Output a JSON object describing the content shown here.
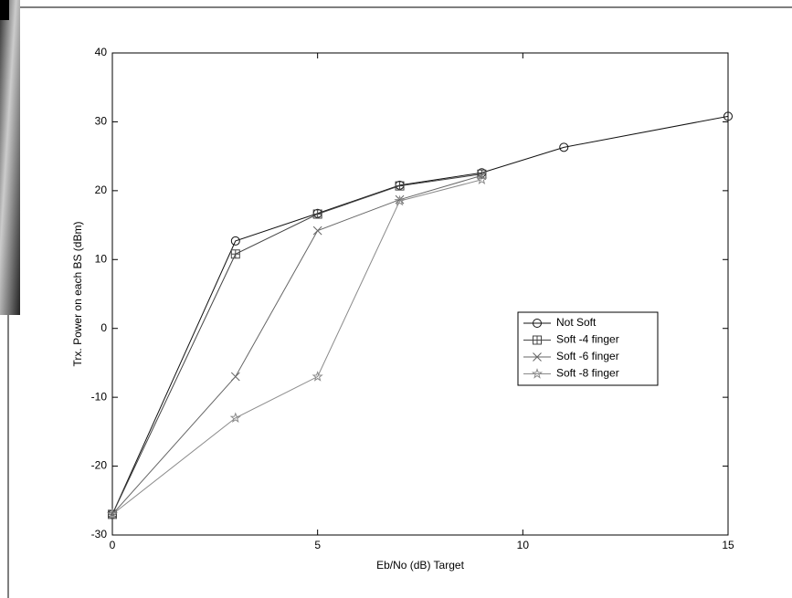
{
  "chart_data": {
    "type": "line",
    "xlabel": "Eb/No (dB) Target",
    "ylabel": "Trx. Power on each BS (dBm)",
    "xlim": [
      0,
      15
    ],
    "xticks": [
      0,
      5,
      10,
      15
    ],
    "ylim": [
      -30,
      40
    ],
    "yticks": [
      -30,
      -20,
      -10,
      0,
      10,
      20,
      30,
      40
    ],
    "legend_position": "center right",
    "series": [
      {
        "name": "Not Soft",
        "color": "#111111",
        "marker": "circle",
        "x": [
          0,
          3,
          5,
          7,
          9,
          11,
          15
        ],
        "values": [
          -27,
          12.7,
          16.7,
          20.8,
          22.6,
          26.3,
          30.8
        ]
      },
      {
        "name": "Soft -4 finger",
        "color": "#444444",
        "marker": "square",
        "x": [
          0,
          3,
          5,
          7,
          9
        ],
        "values": [
          -27,
          10.8,
          16.6,
          20.7,
          22.4
        ]
      },
      {
        "name": "Soft -6 finger",
        "color": "#666666",
        "marker": "cross",
        "x": [
          0,
          3,
          5,
          7,
          9
        ],
        "values": [
          -27,
          -7,
          14.2,
          18.7,
          22.2
        ]
      },
      {
        "name": "Soft -8 finger",
        "color": "#8a8a8a",
        "marker": "star",
        "x": [
          0,
          3,
          5,
          7,
          9
        ],
        "values": [
          -27,
          -13,
          -7,
          18.5,
          21.6
        ]
      }
    ]
  }
}
